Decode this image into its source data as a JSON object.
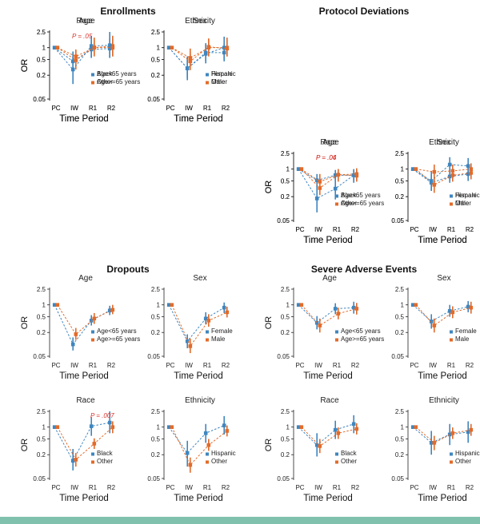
{
  "colors": {
    "series1": "#3f86bf",
    "series2": "#e26b2a",
    "annotation": "#d9322a",
    "footer": "#7fc1ad",
    "axis": "#222222"
  },
  "shared": {
    "categories": [
      "PC",
      "IW",
      "R1",
      "R2"
    ],
    "y_ticks": [
      0.05,
      0.2,
      0.5,
      1,
      2.5
    ],
    "y_tick_labels": [
      "0.05",
      "0.2",
      "0.5",
      "1",
      "2.5"
    ],
    "ylabel": "OR",
    "xlabel": "Time Period"
  },
  "chart_data": [
    {
      "type": "scatter",
      "group": "Enrollments",
      "title": "Age",
      "categories": [
        "PC",
        "IW",
        "R1",
        "R2"
      ],
      "ylim": [
        0.05,
        2.5
      ],
      "log_y": true,
      "legend": "bottom-right",
      "annotation": "",
      "series": [
        {
          "name": "Age<65 years",
          "values": [
            1,
            0.45,
            0.9,
            0.95
          ],
          "lower": [
            1,
            0.25,
            0.55,
            0.55
          ],
          "upper": [
            1,
            0.8,
            1.6,
            1.7
          ]
        },
        {
          "name": "Age>=65 years",
          "values": [
            1,
            0.48,
            1.0,
            1.1
          ],
          "lower": [
            1,
            0.28,
            0.6,
            0.6
          ],
          "upper": [
            1,
            0.85,
            1.8,
            2.0
          ]
        }
      ]
    },
    {
      "type": "scatter",
      "group": "Enrollments",
      "title": "Sex",
      "categories": [
        "PC",
        "IW",
        "R1",
        "R2"
      ],
      "ylim": [
        0.05,
        2.5
      ],
      "log_y": true,
      "legend": "bottom-right",
      "annotation": "",
      "series": [
        {
          "name": "Female",
          "values": [
            1,
            0.3,
            0.75,
            0.75
          ],
          "lower": [
            1,
            0.17,
            0.45,
            0.45
          ],
          "upper": [
            1,
            0.55,
            1.3,
            1.3
          ]
        },
        {
          "name": "Male",
          "values": [
            1,
            0.55,
            1.0,
            1.0
          ],
          "lower": [
            1,
            0.32,
            0.6,
            0.6
          ],
          "upper": [
            1,
            0.95,
            1.7,
            1.8
          ]
        }
      ]
    },
    {
      "type": "scatter",
      "group": "Protocol Deviations",
      "title": "Age",
      "categories": [
        "PC",
        "IW",
        "R1",
        "R2"
      ],
      "ylim": [
        0.05,
        2.5
      ],
      "log_y": true,
      "legend": "bottom-right",
      "annotation": "P = .06",
      "annotation_x": "IW",
      "series": [
        {
          "name": "Age<65 years",
          "values": [
            1,
            0.52,
            0.7,
            0.7
          ],
          "lower": [
            1,
            0.35,
            0.5,
            0.5
          ],
          "upper": [
            1,
            0.75,
            0.95,
            0.95
          ]
        },
        {
          "name": "Age>=65 years",
          "values": [
            1,
            0.33,
            0.72,
            0.68
          ],
          "lower": [
            1,
            0.22,
            0.52,
            0.48
          ],
          "upper": [
            1,
            0.5,
            1.0,
            0.95
          ]
        }
      ]
    },
    {
      "type": "scatter",
      "group": "Protocol Deviations",
      "title": "Sex",
      "categories": [
        "PC",
        "IW",
        "R1",
        "R2"
      ],
      "ylim": [
        0.05,
        2.5
      ],
      "log_y": true,
      "legend": "bottom-right",
      "annotation": "",
      "series": [
        {
          "name": "Female",
          "values": [
            1,
            0.45,
            0.65,
            0.75
          ],
          "lower": [
            1,
            0.28,
            0.45,
            0.5
          ],
          "upper": [
            1,
            0.72,
            0.95,
            1.1
          ]
        },
        {
          "name": "Male",
          "values": [
            1,
            0.4,
            0.7,
            0.8
          ],
          "lower": [
            1,
            0.25,
            0.48,
            0.55
          ],
          "upper": [
            1,
            0.65,
            1.0,
            1.2
          ]
        }
      ]
    },
    {
      "type": "scatter",
      "group": "Enrollments",
      "title": "Race",
      "categories": [
        "PC",
        "IW",
        "R1",
        "R2"
      ],
      "ylim": [
        0.05,
        2.5
      ],
      "log_y": true,
      "legend": "bottom-right",
      "annotation": "P = .05",
      "annotation_x": "IW",
      "series": [
        {
          "name": "Black",
          "values": [
            1,
            0.28,
            1.1,
            1.15
          ],
          "lower": [
            1,
            0.12,
            0.55,
            0.55
          ],
          "upper": [
            1,
            0.6,
            2.0,
            2.5
          ]
        },
        {
          "name": "Other",
          "values": [
            1,
            0.6,
            1.0,
            1.0
          ],
          "lower": [
            1,
            0.4,
            0.65,
            0.6
          ],
          "upper": [
            1,
            0.9,
            1.6,
            1.7
          ]
        }
      ]
    },
    {
      "type": "scatter",
      "group": "Enrollments",
      "title": "Ethnicity",
      "categories": [
        "PC",
        "IW",
        "R1",
        "R2"
      ],
      "ylim": [
        0.05,
        2.5
      ],
      "log_y": true,
      "legend": "bottom-right",
      "annotation": "",
      "series": [
        {
          "name": "Hispanic",
          "values": [
            1,
            0.3,
            0.7,
            1.0
          ],
          "lower": [
            1,
            0.15,
            0.4,
            0.5
          ],
          "upper": [
            1,
            0.6,
            1.2,
            1.9
          ]
        },
        {
          "name": "Other",
          "values": [
            1,
            0.45,
            1.05,
            0.95
          ],
          "lower": [
            1,
            0.27,
            0.65,
            0.6
          ],
          "upper": [
            1,
            0.75,
            1.7,
            1.6
          ]
        }
      ]
    },
    {
      "type": "scatter",
      "group": "Protocol Deviations",
      "title": "Race",
      "categories": [
        "PC",
        "IW",
        "R1",
        "R2"
      ],
      "ylim": [
        0.05,
        2.5
      ],
      "log_y": true,
      "legend": "bottom-right",
      "annotation": "P = .04",
      "annotation_x": "IW",
      "series": [
        {
          "name": "Black",
          "values": [
            1,
            0.18,
            0.32,
            0.7
          ],
          "lower": [
            1,
            0.08,
            0.17,
            0.45
          ],
          "upper": [
            1,
            0.38,
            0.6,
            1.0
          ]
        },
        {
          "name": "Other",
          "values": [
            1,
            0.48,
            0.72,
            0.75
          ],
          "lower": [
            1,
            0.3,
            0.48,
            0.5
          ],
          "upper": [
            1,
            0.75,
            1.0,
            1.05
          ]
        }
      ]
    },
    {
      "type": "scatter",
      "group": "Protocol Deviations",
      "title": "Ethnicity",
      "categories": [
        "PC",
        "IW",
        "R1",
        "R2"
      ],
      "ylim": [
        0.05,
        2.5
      ],
      "log_y": true,
      "legend": "bottom-right",
      "annotation": "",
      "series": [
        {
          "name": "Hispanic",
          "values": [
            1,
            0.5,
            1.3,
            1.2
          ],
          "lower": [
            1,
            0.28,
            0.8,
            0.75
          ],
          "upper": [
            1,
            0.9,
            2.0,
            1.9
          ]
        },
        {
          "name": "Other",
          "values": [
            1,
            0.85,
            0.9,
            1.0
          ],
          "lower": [
            1,
            0.55,
            0.6,
            0.65
          ],
          "upper": [
            1,
            1.3,
            1.3,
            1.4
          ]
        }
      ]
    },
    {
      "type": "scatter",
      "group": "Dropouts",
      "title": "Age",
      "categories": [
        "PC",
        "IW",
        "R1",
        "R2"
      ],
      "ylim": [
        0.05,
        2.5
      ],
      "log_y": true,
      "legend": "bottom-right",
      "annotation": "",
      "series": [
        {
          "name": "Age<65 years",
          "values": [
            1,
            0.1,
            0.4,
            0.72
          ],
          "lower": [
            1,
            0.07,
            0.3,
            0.55
          ],
          "upper": [
            1,
            0.15,
            0.55,
            0.95
          ]
        },
        {
          "name": "Age>=65 years",
          "values": [
            1,
            0.18,
            0.45,
            0.75
          ],
          "lower": [
            1,
            0.13,
            0.33,
            0.58
          ],
          "upper": [
            1,
            0.26,
            0.62,
            1.0
          ]
        }
      ]
    },
    {
      "type": "scatter",
      "group": "Dropouts",
      "title": "Sex",
      "categories": [
        "PC",
        "IW",
        "R1",
        "R2"
      ],
      "ylim": [
        0.05,
        2.5
      ],
      "log_y": true,
      "legend": "bottom-right",
      "annotation": "",
      "series": [
        {
          "name": "Female",
          "values": [
            1,
            0.12,
            0.45,
            0.85
          ],
          "lower": [
            1,
            0.08,
            0.32,
            0.62
          ],
          "upper": [
            1,
            0.18,
            0.65,
            1.15
          ]
        },
        {
          "name": "Male",
          "values": [
            1,
            0.09,
            0.4,
            0.65
          ],
          "lower": [
            1,
            0.06,
            0.28,
            0.48
          ],
          "upper": [
            1,
            0.14,
            0.58,
            0.9
          ]
        }
      ]
    },
    {
      "type": "scatter",
      "group": "Dropouts",
      "title": "Race",
      "categories": [
        "PC",
        "IW",
        "R1",
        "R2"
      ],
      "ylim": [
        0.05,
        2.5
      ],
      "log_y": true,
      "legend": "bottom-right",
      "annotation": "P = .007",
      "annotation_x": "R1",
      "series": [
        {
          "name": "Black",
          "values": [
            1,
            0.14,
            1.05,
            1.3
          ],
          "lower": [
            1,
            0.08,
            0.6,
            0.7
          ],
          "upper": [
            1,
            0.28,
            1.8,
            2.5
          ]
        },
        {
          "name": "Other",
          "values": [
            1,
            0.15,
            0.38,
            1.0
          ],
          "lower": [
            1,
            0.1,
            0.28,
            0.7
          ],
          "upper": [
            1,
            0.22,
            0.52,
            1.4
          ]
        }
      ]
    },
    {
      "type": "scatter",
      "group": "Dropouts",
      "title": "Ethnicity",
      "categories": [
        "PC",
        "IW",
        "R1",
        "R2"
      ],
      "ylim": [
        0.05,
        2.5
      ],
      "log_y": true,
      "legend": "bottom-right",
      "annotation": "",
      "series": [
        {
          "name": "Hispanic",
          "values": [
            1,
            0.22,
            0.7,
            1.1
          ],
          "lower": [
            1,
            0.1,
            0.4,
            0.65
          ],
          "upper": [
            1,
            0.45,
            1.2,
            1.9
          ]
        },
        {
          "name": "Other",
          "values": [
            1,
            0.11,
            0.35,
            0.8
          ],
          "lower": [
            1,
            0.07,
            0.25,
            0.58
          ],
          "upper": [
            1,
            0.17,
            0.5,
            1.1
          ]
        }
      ]
    },
    {
      "type": "scatter",
      "group": "Severe Adverse Events",
      "title": "Age",
      "categories": [
        "PC",
        "IW",
        "R1",
        "R2"
      ],
      "ylim": [
        0.05,
        2.5
      ],
      "log_y": true,
      "legend": "bottom-right",
      "annotation": "",
      "series": [
        {
          "name": "Age<65 years",
          "values": [
            1,
            0.35,
            0.8,
            0.85
          ],
          "lower": [
            1,
            0.24,
            0.58,
            0.6
          ],
          "upper": [
            1,
            0.52,
            1.1,
            1.2
          ]
        },
        {
          "name": "Age>=65 years",
          "values": [
            1,
            0.3,
            0.6,
            0.8
          ],
          "lower": [
            1,
            0.2,
            0.43,
            0.57
          ],
          "upper": [
            1,
            0.45,
            0.85,
            1.12
          ]
        }
      ]
    },
    {
      "type": "scatter",
      "group": "Severe Adverse Events",
      "title": "Sex",
      "categories": [
        "PC",
        "IW",
        "R1",
        "R2"
      ],
      "ylim": [
        0.05,
        2.5
      ],
      "log_y": true,
      "legend": "bottom-right",
      "annotation": "",
      "series": [
        {
          "name": "Female",
          "values": [
            1,
            0.38,
            0.7,
            0.9
          ],
          "lower": [
            1,
            0.25,
            0.5,
            0.65
          ],
          "upper": [
            1,
            0.58,
            1.0,
            1.25
          ]
        },
        {
          "name": "Male",
          "values": [
            1,
            0.3,
            0.65,
            0.85
          ],
          "lower": [
            1,
            0.2,
            0.46,
            0.6
          ],
          "upper": [
            1,
            0.45,
            0.92,
            1.2
          ]
        }
      ]
    },
    {
      "type": "scatter",
      "group": "Severe Adverse Events",
      "title": "Race",
      "categories": [
        "PC",
        "IW",
        "R1",
        "R2"
      ],
      "ylim": [
        0.05,
        2.5
      ],
      "log_y": true,
      "legend": "bottom-right",
      "annotation": "",
      "series": [
        {
          "name": "Black",
          "values": [
            1,
            0.35,
            0.85,
            1.2
          ],
          "lower": [
            1,
            0.18,
            0.5,
            0.7
          ],
          "upper": [
            1,
            0.7,
            1.45,
            2.0
          ]
        },
        {
          "name": "Other",
          "values": [
            1,
            0.33,
            0.7,
            0.9
          ],
          "lower": [
            1,
            0.22,
            0.5,
            0.65
          ],
          "upper": [
            1,
            0.5,
            0.98,
            1.25
          ]
        }
      ]
    },
    {
      "type": "scatter",
      "group": "Severe Adverse Events",
      "title": "Ethnicity",
      "categories": [
        "PC",
        "IW",
        "R1",
        "R2"
      ],
      "ylim": [
        0.05,
        2.5
      ],
      "log_y": true,
      "legend": "bottom-right",
      "annotation": "",
      "series": [
        {
          "name": "Hispanic",
          "values": [
            1,
            0.4,
            0.65,
            0.75
          ],
          "lower": [
            1,
            0.2,
            0.35,
            0.4
          ],
          "upper": [
            1,
            0.8,
            1.2,
            1.4
          ]
        },
        {
          "name": "Other",
          "values": [
            1,
            0.4,
            0.7,
            0.85
          ],
          "lower": [
            1,
            0.26,
            0.5,
            0.6
          ],
          "upper": [
            1,
            0.6,
            0.98,
            1.2
          ]
        }
      ]
    }
  ]
}
